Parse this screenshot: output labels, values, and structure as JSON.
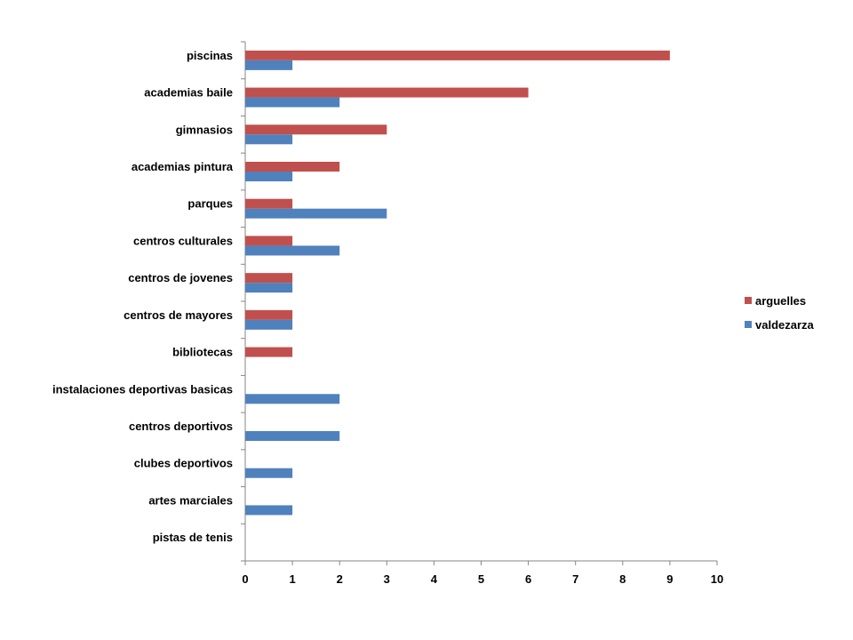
{
  "chart_data": {
    "type": "bar",
    "orientation": "horizontal",
    "title": "",
    "xlabel": "",
    "ylabel": "",
    "categories": [
      "piscinas",
      "academias baile",
      "gimnasios",
      "academias pintura",
      "parques",
      "centros culturales",
      "centros de jovenes",
      "centros de mayores",
      "bibliotecas",
      "instalaciones deportivas basicas",
      "centros deportivos",
      "clubes deportivos",
      "artes marciales",
      "pistas de tenis"
    ],
    "series": [
      {
        "name": "arguelles",
        "color": "#C0504D",
        "values": [
          9,
          6,
          3,
          2,
          1,
          1,
          1,
          1,
          1,
          0,
          0,
          0,
          0,
          0
        ]
      },
      {
        "name": "valdezarza",
        "color": "#4F81BD",
        "values": [
          1,
          2,
          1,
          1,
          3,
          2,
          1,
          1,
          0,
          2,
          2,
          1,
          1,
          0
        ]
      }
    ],
    "xlim": [
      0,
      10
    ],
    "xticks": [
      "0",
      "1",
      "2",
      "3",
      "4",
      "5",
      "6",
      "7",
      "8",
      "9",
      "10"
    ],
    "grid": false,
    "legend_position": "right"
  }
}
